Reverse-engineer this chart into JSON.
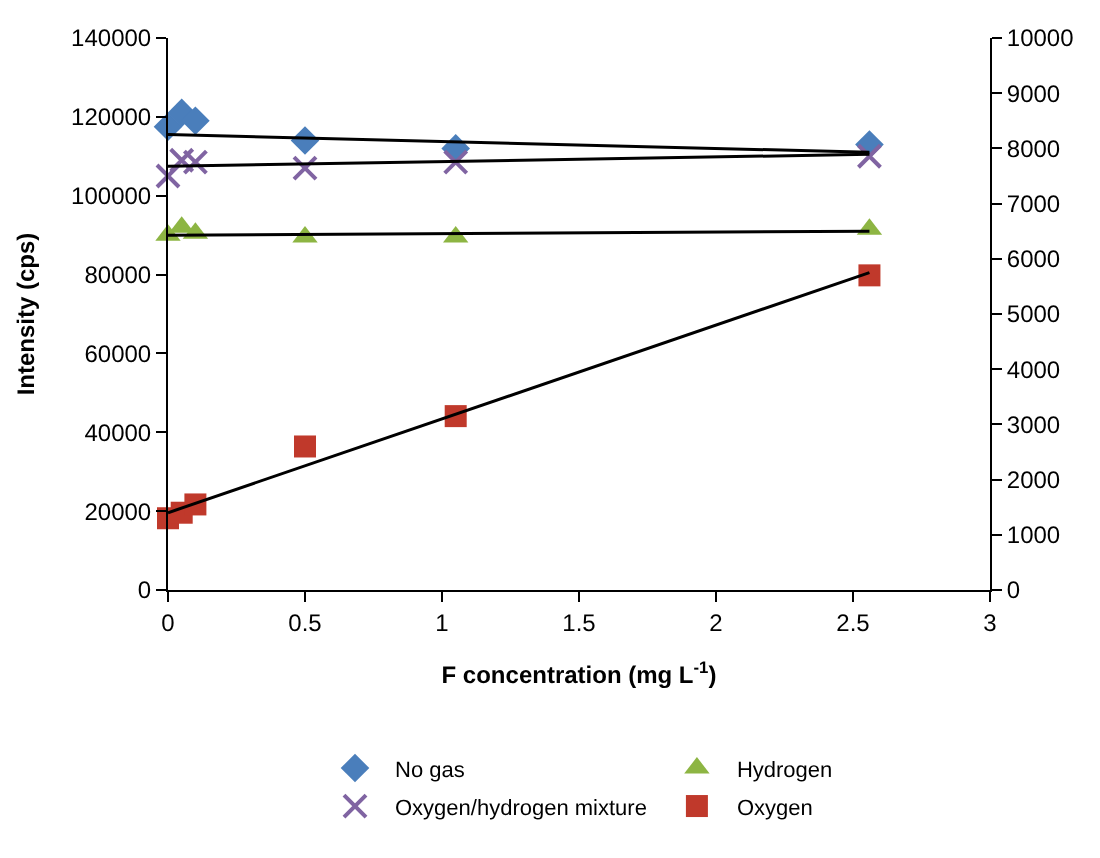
{
  "chart_data": {
    "type": "scatter",
    "xlabel": "F concentration (mg L$^{-1}$)",
    "ylabel": "Intensity (cps)",
    "xlim": [
      0,
      3
    ],
    "xticks": [
      0,
      0.5,
      1,
      1.5,
      2,
      2.5,
      3
    ],
    "ylim": [
      0,
      140000
    ],
    "yticks": [
      0,
      20000,
      40000,
      60000,
      80000,
      100000,
      120000,
      140000
    ],
    "y2lim": [
      0,
      10000
    ],
    "y2ticks": [
      0,
      1000,
      2000,
      3000,
      4000,
      5000,
      6000,
      7000,
      8000,
      9000,
      10000
    ],
    "legend": "bottom",
    "series": [
      {
        "name": "No gas",
        "color": "#4a7ebb",
        "marker": "diamond",
        "x": [
          0,
          0.05,
          0.1,
          0.5,
          1.05,
          2.56
        ],
        "values": [
          117500,
          121000,
          119000,
          114000,
          112000,
          113000
        ]
      },
      {
        "name": "Hydrogen",
        "color": "#8db543",
        "marker": "triangle",
        "x": [
          0,
          0.05,
          0.1,
          0.5,
          1.05,
          2.56
        ],
        "values": [
          90000,
          92000,
          90500,
          89500,
          89500,
          91500
        ]
      },
      {
        "name": "Oxygen/hydrogen mixture",
        "color": "#8064a2",
        "marker": "cross",
        "x": [
          0,
          0.05,
          0.1,
          0.5,
          1.05,
          2.56
        ],
        "values": [
          105000,
          109000,
          108500,
          107000,
          108500,
          110000
        ]
      },
      {
        "name": "Oxygen",
        "color": "#c0392b",
        "marker": "square",
        "axis": "y2",
        "x": [
          0,
          0.05,
          0.1,
          0.5,
          1.05,
          2.56
        ],
        "values": [
          1300,
          1400,
          1550,
          2600,
          3150,
          5700
        ]
      },
      {
        "type": "line",
        "color": "#000000",
        "marker": "none",
        "x": [
          0,
          2.56
        ],
        "values": [
          115500,
          111000
        ]
      },
      {
        "type": "line",
        "color": "#000000",
        "marker": "none",
        "x": [
          0,
          2.56
        ],
        "values": [
          107500,
          110500
        ]
      },
      {
        "type": "line",
        "color": "#000000",
        "marker": "none",
        "x": [
          0,
          2.56
        ],
        "values": [
          90000,
          91000
        ]
      },
      {
        "type": "line",
        "color": "#000000",
        "marker": "none",
        "axis": "y2",
        "x": [
          0,
          2.56
        ],
        "values": [
          1400,
          5750
        ]
      }
    ]
  }
}
